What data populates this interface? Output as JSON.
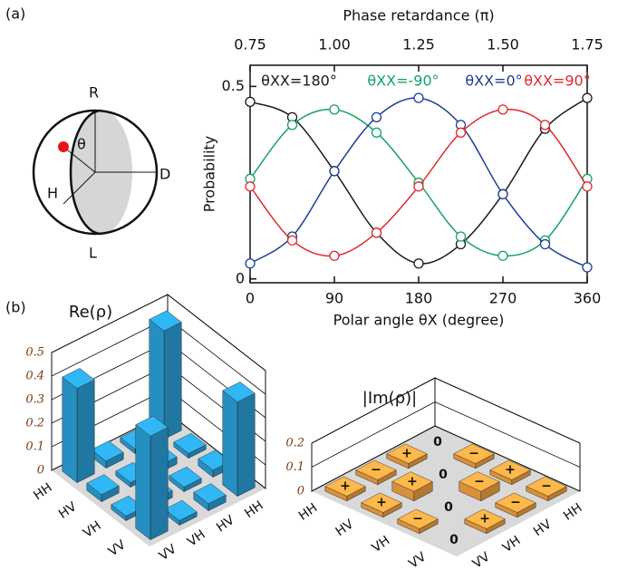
{
  "panel_labels": [
    "(a)",
    "(b)"
  ],
  "bloch_sphere": {
    "top": "R",
    "right": "D",
    "left": "H",
    "bottom": "L",
    "angle": "θ"
  },
  "chart_data": [
    {
      "type": "line",
      "x2label": "Phase retardance (π)",
      "ylabel": "Probability",
      "xlabel": "Polar angle θX (degree)",
      "x": [
        0,
        45,
        90,
        135,
        180,
        225,
        270,
        315,
        360
      ],
      "xlim": [
        0,
        360
      ],
      "xticks": [
        0,
        90,
        180,
        270,
        360
      ],
      "x2lim": [
        0.75,
        1.75
      ],
      "x2ticks": [
        0.75,
        {
          "value": 1,
          "label": "1.00"
        },
        1.25,
        {
          "value": 1.5,
          "label": "1.50"
        },
        1.75
      ],
      "ylim": [
        -0.01,
        0.555
      ],
      "yticks": [
        0,
        0.5
      ],
      "series": [
        {
          "name": "θXX=180°",
          "color": "#1a1a1a",
          "values": [
            0.46,
            0.42,
            0.28,
            0.12,
            0.04,
            0.09,
            0.22,
            0.39,
            0.47
          ]
        },
        {
          "name": "θXX=-90°",
          "color": "#13a36a",
          "values": [
            0.26,
            0.4,
            0.44,
            0.38,
            0.25,
            0.11,
            0.06,
            0.1,
            0.26
          ]
        },
        {
          "name": "θXX=0°",
          "color": "#1f3d99",
          "values": [
            0.04,
            0.11,
            0.28,
            0.42,
            0.47,
            0.4,
            0.22,
            0.09,
            0.03
          ]
        },
        {
          "name": "θXX=90°",
          "color": "#e0282e",
          "values": [
            0.24,
            0.1,
            0.06,
            0.12,
            0.24,
            0.38,
            0.44,
            0.4,
            0.24
          ]
        }
      ]
    },
    {
      "type": "bar3d",
      "title": "Re(ρ)",
      "color": "#2a9fd6",
      "rows": [
        "HH",
        "HV",
        "VH",
        "VV"
      ],
      "columns": [
        "HH",
        "HV",
        "VH",
        "VV"
      ],
      "zlim": [
        0,
        0.5
      ],
      "zticks": [
        0,
        0.1,
        0.2,
        0.3,
        0.4,
        0.5
      ],
      "values": [
        [
          0.46,
          0.02,
          0.03,
          0.4
        ],
        [
          0.02,
          0.03,
          0.02,
          0.03
        ],
        [
          0.03,
          0.02,
          0.03,
          0.02
        ],
        [
          0.4,
          0.03,
          0.02,
          0.44
        ]
      ]
    },
    {
      "type": "bar3d",
      "title": "|Im(ρ)|",
      "color": "#f0a040",
      "rows": [
        "HH",
        "HV",
        "VH",
        "VV"
      ],
      "columns": [
        "HH",
        "HV",
        "VH",
        "VV"
      ],
      "zlim": [
        0,
        0.2
      ],
      "zticks": [
        0,
        0.1,
        0.2
      ],
      "values": [
        [
          0,
          0.02,
          0.02,
          0.02
        ],
        [
          0.02,
          0,
          0.04,
          0.02
        ],
        [
          0.02,
          0.04,
          0,
          0.02
        ],
        [
          0.02,
          0.02,
          0.02,
          0
        ]
      ],
      "value_labels": [
        [
          "0",
          "+",
          "−",
          "+"
        ],
        [
          "−",
          "0",
          "+",
          "+"
        ],
        [
          "+",
          "−",
          "0",
          "−"
        ],
        [
          "−",
          "−",
          "+",
          "0"
        ]
      ]
    }
  ]
}
